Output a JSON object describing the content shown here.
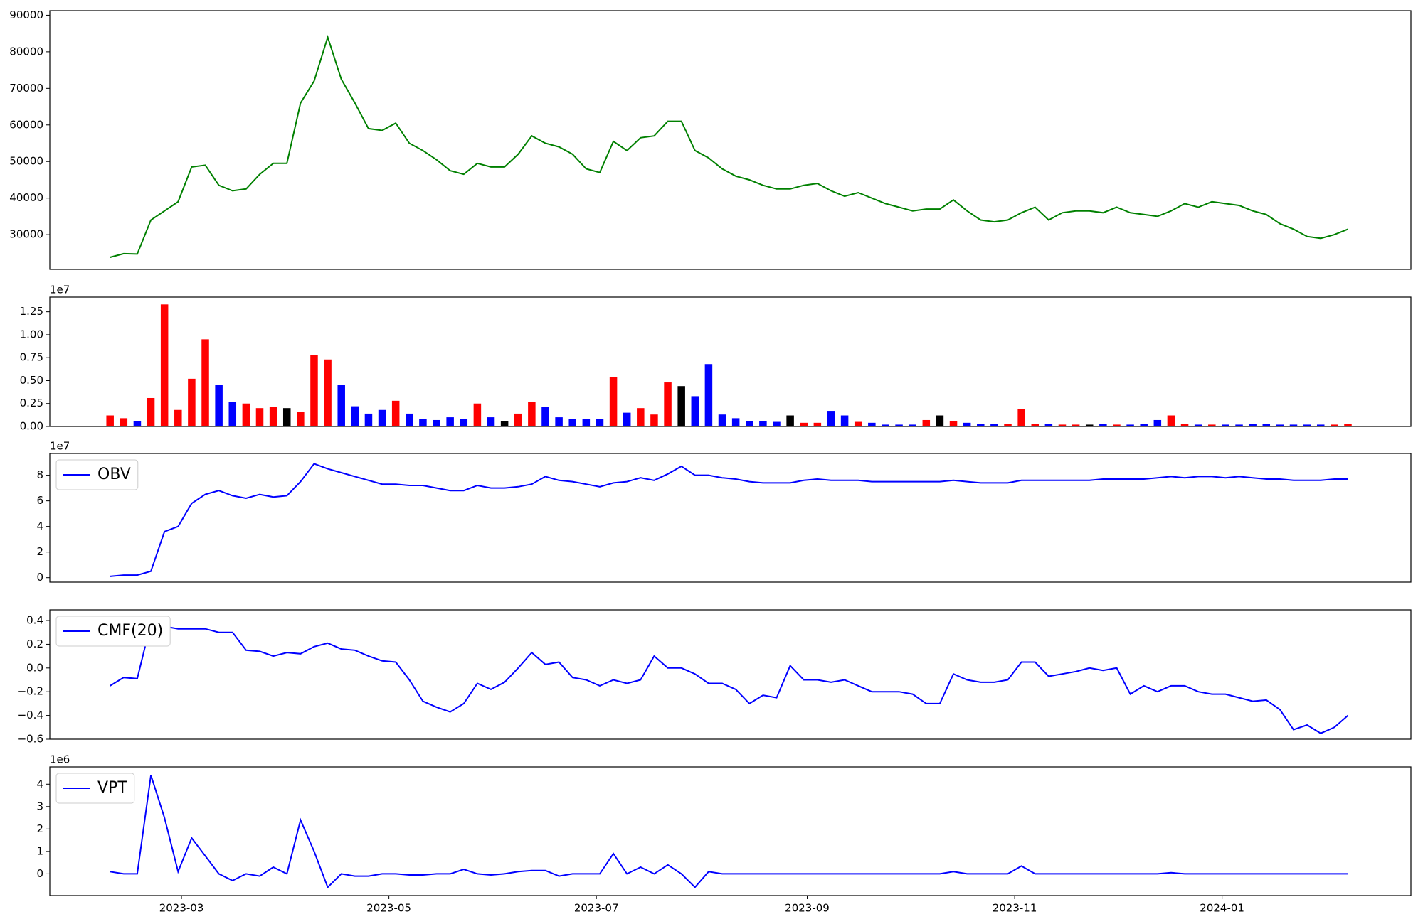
{
  "chart_data": [
    {
      "type": "line",
      "color": "#008000",
      "xlim": [
        -4.43,
        95.63
      ],
      "ylim": [
        20500,
        91250
      ],
      "yticks": [
        30000,
        40000,
        50000,
        60000,
        70000,
        80000,
        90000
      ],
      "values": [
        23800,
        24800,
        24700,
        34000,
        36500,
        39000,
        48500,
        49000,
        43500,
        42000,
        42500,
        46500,
        49500,
        49500,
        66000,
        72000,
        84000,
        72500,
        66000,
        59000,
        58500,
        60500,
        55000,
        53000,
        50500,
        47500,
        46500,
        49500,
        48500,
        48500,
        52000,
        57000,
        55000,
        54000,
        52000,
        48000,
        47000,
        55500,
        53000,
        56500,
        57000,
        61000,
        61000,
        53000,
        51000,
        48000,
        46000,
        45000,
        43500,
        42500,
        42500,
        43500,
        44000,
        42000,
        40500,
        41500,
        40000,
        38500,
        37500,
        36500,
        37000,
        37000,
        39500,
        36500,
        34000,
        33500,
        34000,
        36000,
        37500,
        34000,
        36000,
        36500,
        36500,
        36000,
        37500,
        36000,
        35500,
        35000,
        36500,
        38500,
        37500,
        39000,
        38500,
        38000,
        36500,
        35500,
        33000,
        31500,
        29500,
        29000,
        30000,
        31500
      ]
    },
    {
      "type": "bar",
      "up_color": "#ff0000",
      "down_color": "#0000ff",
      "flat_color": "#000000",
      "offset_label": "1e7",
      "xlim": [
        -4.43,
        95.63
      ],
      "ylim": [
        0,
        1.41
      ],
      "yticks": [
        {
          "value": 0,
          "label": "0.00"
        },
        0.25,
        {
          "value": 0.5,
          "label": "0.50"
        },
        0.75,
        {
          "value": 1,
          "label": "1.00"
        },
        1.25
      ],
      "values": [
        0.12,
        0.09,
        0.06,
        0.31,
        1.33,
        0.18,
        0.52,
        0.95,
        0.45,
        0.27,
        0.25,
        0.2,
        0.21,
        0.2,
        0.16,
        0.78,
        0.73,
        0.45,
        0.22,
        0.14,
        0.18,
        0.28,
        0.14,
        0.08,
        0.07,
        0.1,
        0.08,
        0.25,
        0.1,
        0.06,
        0.14,
        0.27,
        0.21,
        0.1,
        0.08,
        0.08,
        0.08,
        0.54,
        0.15,
        0.2,
        0.13,
        0.48,
        0.44,
        0.33,
        0.68,
        0.13,
        0.09,
        0.06,
        0.06,
        0.05,
        0.12,
        0.04,
        0.04,
        0.17,
        0.12,
        0.05,
        0.04,
        0.02,
        0.02,
        0.02,
        0.07,
        0.12,
        0.06,
        0.04,
        0.03,
        0.03,
        0.03,
        0.19,
        0.03,
        0.03,
        0.02,
        0.02,
        0.02,
        0.03,
        0.02,
        0.02,
        0.03,
        0.07,
        0.12,
        0.03,
        0.02,
        0.02,
        0.02,
        0.02,
        0.03,
        0.03,
        0.02,
        0.02,
        0.02,
        0.02,
        0.02,
        0.03
      ]
    },
    {
      "type": "line",
      "offset_label": "1e7",
      "legend": "upper left",
      "xlim": [
        -4.43,
        95.63
      ],
      "ylim": [
        -0.35,
        9.7
      ],
      "yticks": [
        0,
        2,
        4,
        6,
        8
      ],
      "series": [
        {
          "name": "OBV",
          "color": "#0000ff",
          "values": [
            0.1,
            0.2,
            0.2,
            0.5,
            3.6,
            4.0,
            5.8,
            6.5,
            6.8,
            6.4,
            6.2,
            6.5,
            6.3,
            6.4,
            7.5,
            8.9,
            8.5,
            8.2,
            7.9,
            7.6,
            7.3,
            7.3,
            7.2,
            7.2,
            7.0,
            6.8,
            6.8,
            7.2,
            7.0,
            7.0,
            7.1,
            7.3,
            7.9,
            7.6,
            7.5,
            7.3,
            7.1,
            7.4,
            7.5,
            7.8,
            7.6,
            8.1,
            8.7,
            8.0,
            8.0,
            7.8,
            7.7,
            7.5,
            7.4,
            7.4,
            7.4,
            7.6,
            7.7,
            7.6,
            7.6,
            7.6,
            7.5,
            7.5,
            7.5,
            7.5,
            7.5,
            7.5,
            7.6,
            7.5,
            7.4,
            7.4,
            7.4,
            7.6,
            7.6,
            7.6,
            7.6,
            7.6,
            7.6,
            7.7,
            7.7,
            7.7,
            7.7,
            7.8,
            7.9,
            7.8,
            7.9,
            7.9,
            7.8,
            7.9,
            7.8,
            7.7,
            7.7,
            7.6,
            7.6,
            7.6,
            7.7,
            7.7
          ]
        }
      ]
    },
    {
      "type": "line",
      "legend": "upper left",
      "xlim": [
        -4.43,
        95.63
      ],
      "ylim": [
        -0.6,
        0.49
      ],
      "yticks": [
        {
          "value": -0.6,
          "label": "−0.6"
        },
        {
          "value": -0.4,
          "label": "−0.4"
        },
        {
          "value": -0.2,
          "label": "−0.2"
        },
        {
          "value": 0,
          "label": "0.0"
        },
        0.2,
        0.4
      ],
      "series": [
        {
          "name": "CMF(20)",
          "color": "#0000ff",
          "values": [
            -0.15,
            -0.08,
            -0.09,
            0.38,
            0.35,
            0.33,
            0.33,
            0.33,
            0.3,
            0.3,
            0.15,
            0.14,
            0.1,
            0.13,
            0.12,
            0.18,
            0.21,
            0.16,
            0.15,
            0.1,
            0.06,
            0.05,
            -0.1,
            -0.28,
            -0.33,
            -0.37,
            -0.3,
            -0.13,
            -0.18,
            -0.12,
            0,
            0.13,
            0.03,
            0.05,
            -0.08,
            -0.1,
            -0.15,
            -0.1,
            -0.13,
            -0.1,
            0.1,
            0,
            0,
            -0.05,
            -0.13,
            -0.13,
            -0.18,
            -0.3,
            -0.23,
            -0.25,
            0.02,
            -0.1,
            -0.1,
            -0.12,
            -0.1,
            -0.15,
            -0.2,
            -0.2,
            -0.2,
            -0.22,
            -0.3,
            -0.3,
            -0.05,
            -0.1,
            -0.12,
            -0.12,
            -0.1,
            0.05,
            0.05,
            -0.07,
            -0.05,
            -0.03,
            0,
            -0.02,
            0,
            -0.22,
            -0.15,
            -0.2,
            -0.15,
            -0.15,
            -0.2,
            -0.22,
            -0.22,
            -0.25,
            -0.28,
            -0.27,
            -0.35,
            -0.52,
            -0.48,
            -0.55,
            -0.5,
            -0.4
          ]
        }
      ]
    },
    {
      "type": "line",
      "offset_label": "1e6",
      "legend": "upper left",
      "xlim": [
        -4.43,
        95.63
      ],
      "ylim": [
        -0.97,
        4.77
      ],
      "yticks": [
        0,
        1,
        2,
        3,
        4
      ],
      "xticks": [
        {
          "value": 5.25,
          "label": "2023-03"
        },
        {
          "value": 20.5,
          "label": "2023-05"
        },
        {
          "value": 35.75,
          "label": "2023-07"
        },
        {
          "value": 51.25,
          "label": "2023-09"
        },
        {
          "value": 66.5,
          "label": "2023-11"
        },
        {
          "value": 81.75,
          "label": "2024-01"
        }
      ],
      "series": [
        {
          "name": "VPT",
          "color": "#0000ff",
          "values": [
            0.1,
            0,
            0,
            4.4,
            2.5,
            0.1,
            1.6,
            0.8,
            0,
            -0.3,
            0,
            -0.1,
            0.3,
            0,
            2.4,
            1.0,
            -0.6,
            0,
            -0.1,
            -0.1,
            0,
            0,
            -0.05,
            -0.05,
            0,
            0,
            0.2,
            0,
            -0.05,
            0,
            0.1,
            0.15,
            0.15,
            -0.1,
            0,
            0,
            0,
            0.9,
            0,
            0.3,
            0,
            0.4,
            0,
            -0.6,
            0.1,
            0,
            0,
            0,
            0,
            0,
            0,
            0,
            0,
            0,
            0,
            0,
            0,
            0,
            0,
            0,
            0,
            0,
            0.1,
            0,
            0,
            0,
            0,
            0.35,
            0,
            0,
            0,
            0,
            0,
            0,
            0,
            0,
            0,
            0,
            0.05,
            0,
            0,
            0,
            0,
            0,
            0,
            0,
            0,
            0,
            0,
            0,
            0,
            0
          ]
        }
      ]
    }
  ]
}
